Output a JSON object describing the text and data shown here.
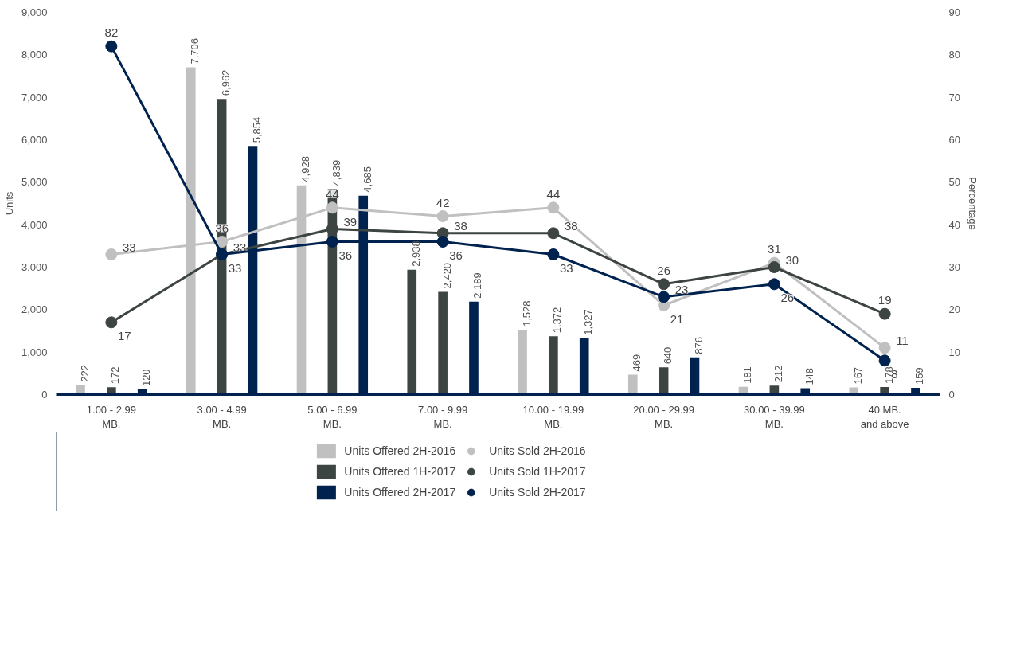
{
  "chart_data": {
    "type": "bar",
    "categories": [
      "1.00 - 2.99\nMB.",
      "3.00 - 4.99\nMB.",
      "5.00 - 6.99\nMB.",
      "7.00 - 9.99\nMB.",
      "10.00 - 19.99\nMB.",
      "20.00 - 29.99\nMB.",
      "30.00 - 39.99\nMB.",
      "40 MB.\nand above"
    ],
    "series": [
      {
        "name": "Units Offered 2H-2016",
        "color": "#c0c0c0",
        "colors": [
          null,
          null,
          null,
          "#3d4542",
          null,
          null,
          null,
          null
        ],
        "values": [
          222,
          7706,
          4928,
          2938,
          1528,
          469,
          181,
          167
        ],
        "value_labels": [
          "222",
          "7,706",
          "4,928",
          "2,938",
          "1,528",
          "469",
          "181",
          "167"
        ]
      },
      {
        "name": "Units Offered 1H-2017",
        "color": "#3d4542",
        "values": [
          172,
          6962,
          4839,
          2420,
          1372,
          640,
          212,
          178
        ],
        "value_labels": [
          "172",
          "6,962",
          "4,839",
          "2,420",
          "1,372",
          "640",
          "212",
          "178"
        ]
      },
      {
        "name": "Units Offered 2H-2017",
        "color": "#00224f",
        "values": [
          120,
          5854,
          4685,
          2189,
          1327,
          876,
          148,
          159
        ],
        "value_labels": [
          "120",
          "5,854",
          "4,685",
          "2,189",
          "1,327",
          "876",
          "148",
          "159"
        ]
      },
      {
        "name": "Units Sold 2H-2016",
        "type": "line",
        "axis": "y2",
        "color": "#c0c0c0",
        "values": [
          33,
          36,
          44,
          42,
          44,
          21,
          31,
          11
        ]
      },
      {
        "name": "Units Sold 1H-2017",
        "type": "line",
        "axis": "y2",
        "color": "#3d4542",
        "values": [
          17,
          33,
          39,
          38,
          38,
          26,
          30,
          19
        ]
      },
      {
        "name": "Units Sold 2H-2017",
        "type": "line",
        "axis": "y2",
        "color": "#00224f",
        "values": [
          82,
          33,
          36,
          36,
          33,
          23,
          26,
          8
        ]
      }
    ],
    "ylabel": "Units",
    "y2label": "Percentage",
    "ylim": [
      0,
      9000
    ],
    "yticks": [
      {
        "value": 0,
        "label": "0"
      },
      {
        "value": 1000,
        "label": "1,000"
      },
      {
        "value": 2000,
        "label": "2,000"
      },
      {
        "value": 3000,
        "label": "3,000"
      },
      {
        "value": 4000,
        "label": "4,000"
      },
      {
        "value": 5000,
        "label": "5,000"
      },
      {
        "value": 6000,
        "label": "6,000"
      },
      {
        "value": 7000,
        "label": "7,000"
      },
      {
        "value": 8000,
        "label": "8,000"
      },
      {
        "value": 9000,
        "label": "9,000"
      }
    ],
    "y2lim": [
      0,
      90
    ],
    "y2ticks": [
      0,
      10,
      20,
      30,
      40,
      50,
      60,
      70,
      80,
      90
    ],
    "data_labels": true,
    "grid": false,
    "legend": "bottom",
    "marker": "circle",
    "line_style": "solid"
  }
}
